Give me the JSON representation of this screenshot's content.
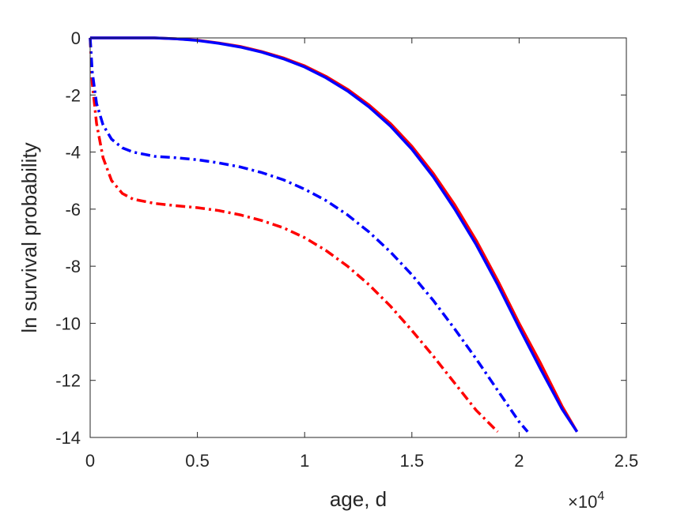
{
  "chart_data": {
    "type": "line",
    "title": "",
    "xlabel": "age, d",
    "ylabel": "ln survival probability",
    "x_exponent_label": "×10",
    "x_exponent_power": "4",
    "xlim": [
      0,
      25000
    ],
    "ylim": [
      -14,
      0
    ],
    "grid": false,
    "legend": "none",
    "x_ticks": [
      0,
      5000,
      10000,
      15000,
      20000,
      25000
    ],
    "x_tick_labels": [
      "0",
      "0.5",
      "1",
      "1.5",
      "2",
      "2.5"
    ],
    "y_ticks": [
      0,
      -2,
      -4,
      -6,
      -8,
      -10,
      -12,
      -14
    ],
    "y_tick_labels": [
      "0",
      "-2",
      "-4",
      "-6",
      "-8",
      "-10",
      "-12",
      "-14"
    ],
    "series": [
      {
        "color": "#ff0000",
        "style": "solid",
        "x": [
          0,
          1000,
          2000,
          3000,
          4000,
          5000,
          6000,
          7000,
          8000,
          9000,
          10000,
          11000,
          12000,
          13000,
          14000,
          15000,
          16000,
          17000,
          18000,
          19000,
          20000,
          21000,
          22000,
          22700
        ],
        "y": [
          0,
          0,
          0,
          0,
          -0.03,
          -0.08,
          -0.18,
          -0.3,
          -0.48,
          -0.7,
          -0.98,
          -1.35,
          -1.8,
          -2.35,
          -3.0,
          -3.8,
          -4.75,
          -5.85,
          -7.1,
          -8.5,
          -10.0,
          -11.4,
          -12.9,
          -13.8
        ]
      },
      {
        "color": "#0000ff",
        "style": "solid",
        "x": [
          0,
          1000,
          2000,
          3000,
          4000,
          5000,
          6000,
          7000,
          8000,
          9000,
          10000,
          11000,
          12000,
          13000,
          14000,
          15000,
          16000,
          17000,
          18000,
          19000,
          20000,
          21000,
          22000,
          22700
        ],
        "y": [
          0,
          0,
          0,
          0,
          -0.03,
          -0.09,
          -0.19,
          -0.32,
          -0.5,
          -0.73,
          -1.02,
          -1.4,
          -1.86,
          -2.42,
          -3.09,
          -3.9,
          -4.87,
          -6.0,
          -7.25,
          -8.65,
          -10.15,
          -11.6,
          -13.0,
          -13.8
        ]
      },
      {
        "color": "#ff0000",
        "style": "dashdot",
        "x": [
          0,
          100,
          300,
          600,
          1000,
          1500,
          2000,
          3000,
          4000,
          5000,
          6000,
          7000,
          8000,
          9000,
          10000,
          11000,
          12000,
          13000,
          14000,
          15000,
          16000,
          17000,
          18000,
          19000
        ],
        "y": [
          0,
          -1.6,
          -3.0,
          -4.2,
          -5.0,
          -5.45,
          -5.65,
          -5.8,
          -5.88,
          -5.95,
          -6.05,
          -6.2,
          -6.4,
          -6.65,
          -7.0,
          -7.45,
          -8.0,
          -8.65,
          -9.4,
          -10.25,
          -11.15,
          -12.1,
          -13.05,
          -13.8
        ]
      },
      {
        "color": "#0000ff",
        "style": "dashdot",
        "x": [
          0,
          100,
          300,
          600,
          1000,
          1500,
          2000,
          3000,
          4000,
          5000,
          6000,
          7000,
          8000,
          9000,
          10000,
          11000,
          12000,
          13000,
          14000,
          15000,
          16000,
          17000,
          18000,
          19000,
          20000,
          20400
        ],
        "y": [
          0,
          -1.2,
          -2.3,
          -3.05,
          -3.55,
          -3.85,
          -4.0,
          -4.15,
          -4.2,
          -4.27,
          -4.38,
          -4.52,
          -4.72,
          -4.97,
          -5.3,
          -5.7,
          -6.2,
          -6.8,
          -7.5,
          -8.3,
          -9.2,
          -10.2,
          -11.25,
          -12.35,
          -13.45,
          -13.8
        ]
      }
    ]
  }
}
